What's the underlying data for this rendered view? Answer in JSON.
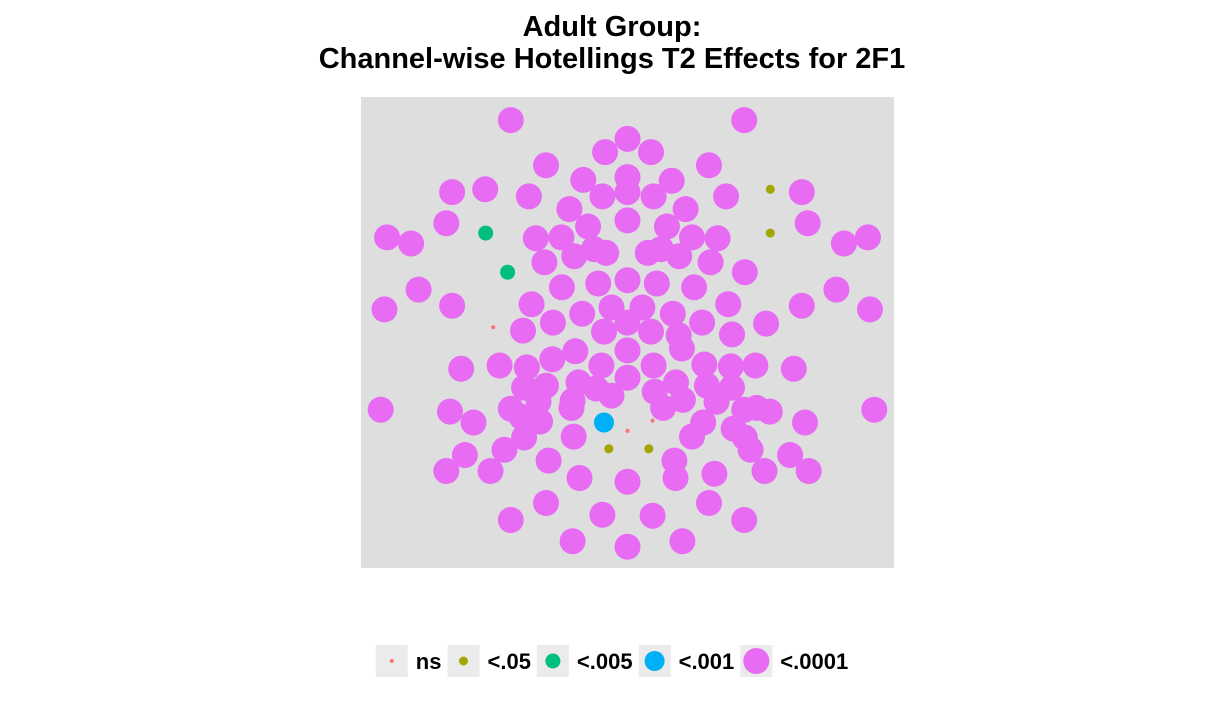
{
  "chart_data": {
    "type": "scatter",
    "title": "Adult Group:",
    "subtitle": "Channel-wise Hotellings T2 Effects for 2F1",
    "xlim": [
      0,
      100
    ],
    "ylim": [
      0,
      100
    ],
    "grid": false,
    "legend_placement": "bottom",
    "panel_color": "#DEDEDE",
    "categories": [
      "ns",
      "<.05",
      "<.005",
      "<.001",
      "<.0001"
    ],
    "colors": {
      "ns": "#F8766D",
      "<.05": "#A3A500",
      "<.005": "#00BF7D",
      "<.001": "#00B0F6",
      "<.0001": "#E76BF3"
    },
    "series": [
      {
        "name": "ns",
        "points": [
          [
            24.8,
            51.1
          ],
          [
            31.0,
            48.5
          ],
          [
            50.0,
            29.1
          ],
          [
            54.7,
            31.3
          ]
        ]
      },
      {
        "name": "<.05",
        "points": [
          [
            76.8,
            80.4
          ],
          [
            76.8,
            71.1
          ],
          [
            46.5,
            25.3
          ],
          [
            54.0,
            25.3
          ]
        ]
      },
      {
        "name": "<.005",
        "points": [
          [
            23.4,
            71.1
          ],
          [
            27.5,
            62.8
          ]
        ]
      },
      {
        "name": "<.001",
        "points": [
          [
            45.6,
            30.9
          ]
        ]
      },
      {
        "name": "<.0001",
        "points": [
          [
            28.1,
            95.1
          ],
          [
            71.9,
            95.1
          ],
          [
            50.0,
            91.1
          ],
          [
            45.8,
            88.3
          ],
          [
            54.4,
            88.3
          ],
          [
            34.7,
            85.5
          ],
          [
            65.3,
            85.5
          ],
          [
            41.7,
            82.4
          ],
          [
            50.0,
            83.0
          ],
          [
            58.3,
            82.2
          ],
          [
            17.1,
            79.8
          ],
          [
            23.3,
            80.4
          ],
          [
            31.5,
            78.9
          ],
          [
            45.3,
            78.9
          ],
          [
            50.0,
            79.8
          ],
          [
            54.9,
            78.9
          ],
          [
            68.5,
            78.9
          ],
          [
            82.7,
            79.8
          ],
          [
            39.1,
            76.2
          ],
          [
            60.9,
            76.2
          ],
          [
            16.0,
            73.2
          ],
          [
            42.6,
            72.5
          ],
          [
            50.0,
            73.8
          ],
          [
            57.4,
            72.5
          ],
          [
            83.8,
            73.2
          ],
          [
            4.9,
            70.2
          ],
          [
            9.4,
            68.9
          ],
          [
            32.8,
            70.0
          ],
          [
            37.6,
            70.2
          ],
          [
            43.7,
            67.7
          ],
          [
            56.3,
            67.7
          ],
          [
            62.1,
            70.2
          ],
          [
            66.9,
            70.0
          ],
          [
            90.6,
            68.9
          ],
          [
            95.1,
            70.2
          ],
          [
            34.4,
            64.9
          ],
          [
            40.0,
            66.2
          ],
          [
            46.0,
            66.9
          ],
          [
            53.8,
            66.9
          ],
          [
            59.7,
            66.2
          ],
          [
            65.6,
            64.9
          ],
          [
            72.0,
            62.8
          ],
          [
            10.8,
            59.1
          ],
          [
            37.7,
            59.6
          ],
          [
            44.5,
            60.4
          ],
          [
            50.0,
            61.1
          ],
          [
            55.5,
            60.4
          ],
          [
            62.5,
            59.6
          ],
          [
            89.2,
            59.1
          ],
          [
            4.4,
            54.9
          ],
          [
            17.1,
            55.7
          ],
          [
            32.0,
            56.0
          ],
          [
            47.0,
            55.3
          ],
          [
            52.8,
            55.3
          ],
          [
            68.9,
            56.0
          ],
          [
            82.7,
            55.7
          ],
          [
            95.5,
            54.9
          ],
          [
            36.0,
            52.1
          ],
          [
            41.5,
            54.0
          ],
          [
            58.5,
            54.0
          ],
          [
            64.0,
            52.1
          ],
          [
            76.0,
            51.9
          ],
          [
            45.6,
            50.2
          ],
          [
            50.0,
            52.1
          ],
          [
            54.4,
            50.2
          ],
          [
            30.4,
            50.4
          ],
          [
            59.6,
            49.4
          ],
          [
            69.6,
            49.6
          ],
          [
            40.2,
            46.0
          ],
          [
            50.0,
            46.2
          ],
          [
            60.2,
            46.6
          ],
          [
            35.9,
            44.3
          ],
          [
            45.1,
            43.0
          ],
          [
            54.9,
            43.0
          ],
          [
            64.4,
            43.2
          ],
          [
            18.8,
            42.3
          ],
          [
            26.0,
            43.0
          ],
          [
            31.1,
            42.6
          ],
          [
            69.4,
            42.8
          ],
          [
            74.0,
            43.0
          ],
          [
            81.2,
            42.3
          ],
          [
            40.8,
            39.4
          ],
          [
            50.0,
            40.4
          ],
          [
            59.1,
            39.4
          ],
          [
            30.6,
            38.3
          ],
          [
            34.7,
            38.7
          ],
          [
            44.1,
            38.1
          ],
          [
            55.1,
            37.4
          ],
          [
            64.9,
            38.7
          ],
          [
            69.6,
            38.3
          ],
          [
            47.0,
            36.6
          ],
          [
            3.7,
            33.6
          ],
          [
            16.7,
            33.2
          ],
          [
            28.1,
            33.8
          ],
          [
            33.3,
            35.3
          ],
          [
            39.7,
            35.5
          ],
          [
            60.4,
            35.7
          ],
          [
            66.7,
            35.3
          ],
          [
            71.9,
            33.6
          ],
          [
            76.7,
            33.2
          ],
          [
            96.3,
            33.6
          ],
          [
            21.1,
            30.9
          ],
          [
            30.1,
            32.1
          ],
          [
            33.6,
            31.1
          ],
          [
            39.5,
            34.0
          ],
          [
            56.7,
            34.0
          ],
          [
            64.2,
            30.9
          ],
          [
            69.9,
            29.6
          ],
          [
            74.2,
            34.0
          ],
          [
            83.3,
            30.9
          ],
          [
            39.9,
            27.9
          ],
          [
            62.1,
            27.9
          ],
          [
            30.6,
            27.7
          ],
          [
            72.0,
            27.7
          ],
          [
            19.5,
            24.0
          ],
          [
            26.9,
            25.1
          ],
          [
            35.2,
            22.8
          ],
          [
            58.8,
            22.8
          ],
          [
            73.1,
            25.1
          ],
          [
            80.5,
            24.0
          ],
          [
            16.0,
            20.6
          ],
          [
            24.3,
            20.6
          ],
          [
            41.0,
            19.1
          ],
          [
            50.0,
            18.3
          ],
          [
            59.0,
            19.1
          ],
          [
            66.3,
            20.0
          ],
          [
            75.7,
            20.6
          ],
          [
            84.0,
            20.6
          ],
          [
            34.7,
            13.8
          ],
          [
            65.3,
            13.8
          ],
          [
            28.1,
            10.2
          ],
          [
            45.3,
            11.3
          ],
          [
            54.7,
            11.1
          ],
          [
            71.9,
            10.2
          ],
          [
            39.7,
            5.7
          ],
          [
            50.0,
            4.5
          ],
          [
            60.3,
            5.7
          ]
        ]
      }
    ]
  }
}
